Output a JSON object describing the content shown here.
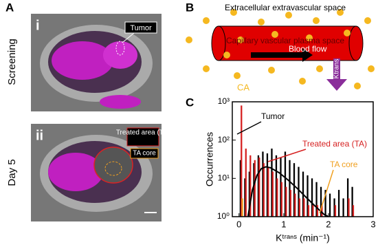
{
  "panel_a": {
    "letter": "A",
    "image_1": {
      "numeral": "i",
      "row_label": "Screening",
      "callout": "Tumor"
    },
    "image_2": {
      "numeral": "ii",
      "row_label": "Day 5",
      "callout_1": "Treated area (TA)",
      "callout_2": "TA core"
    }
  },
  "panel_b": {
    "letter": "B",
    "outer_label": "Extracellular extravascular space",
    "vessel_label": "Capillary vascular plasma space",
    "flow_label": "Blood flow",
    "transfer_label": "Ktrans",
    "agent_label": "CA"
  },
  "chart_data": {
    "type": "histogram",
    "letter": "C",
    "x_label": "Kᵗʳᵃⁿˢ (min⁻¹)",
    "y_label": "Occurrences",
    "log_y": true,
    "xlim": [
      -0.15,
      3
    ],
    "ylim": [
      1,
      1000
    ],
    "xticks": [
      0,
      1,
      2,
      3
    ],
    "yticks": [
      {
        "value": 1,
        "label": "10⁰"
      },
      {
        "value": 10,
        "label": "10¹"
      },
      {
        "value": 100,
        "label": "10²"
      },
      {
        "value": 1000,
        "label": "10³"
      }
    ],
    "bins": [
      0,
      0.1,
      0.2,
      0.3,
      0.4,
      0.5,
      0.6,
      0.7,
      0.8,
      0.9,
      1.0,
      1.1,
      1.2,
      1.3,
      1.4,
      1.5,
      1.6,
      1.7,
      1.8,
      1.9,
      2.0,
      2.1,
      2.2,
      2.3,
      2.4,
      2.5,
      2.6
    ],
    "series": [
      {
        "name": "Tumor",
        "color": "#000000",
        "values": [
          30,
          10,
          15,
          25,
          40,
          50,
          45,
          60,
          40,
          35,
          50,
          30,
          25,
          20,
          15,
          12,
          10,
          8,
          6,
          5,
          4,
          3,
          5,
          3,
          10,
          6
        ]
      },
      {
        "name": "Treated area (TA)",
        "color": "#d62020",
        "values": [
          800,
          60,
          40,
          30,
          35,
          25,
          20,
          15,
          10,
          8,
          6,
          5,
          4,
          3,
          3,
          2,
          2,
          2,
          2,
          null,
          null,
          2,
          null,
          null,
          3,
          2
        ]
      },
      {
        "name": "TA core",
        "color": "#f0a020",
        "values": [
          3,
          null,
          null,
          null,
          null,
          null,
          null,
          null,
          null,
          null,
          null,
          null,
          null,
          null,
          null,
          null,
          null,
          null,
          null,
          null,
          null,
          null,
          null,
          null,
          null,
          null
        ]
      }
    ],
    "fit": {
      "color": "#000000",
      "x": [
        0.2,
        0.3,
        0.4,
        0.5,
        0.6,
        0.7,
        0.9,
        1.1,
        1.3,
        1.5,
        1.7,
        1.9,
        2.0
      ],
      "y": [
        1,
        5,
        12,
        18,
        20,
        19,
        14,
        9,
        5.5,
        3.2,
        1.9,
        1.15,
        1
      ]
    }
  }
}
